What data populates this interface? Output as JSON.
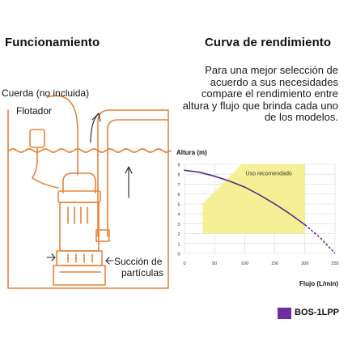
{
  "left": {
    "title": "Funcionamiento",
    "labels": {
      "cord": "Cuerda (no incluida)",
      "float": "Flotador",
      "suction_line1": "Succión de",
      "suction_line2": "partículas"
    }
  },
  "right": {
    "title": "Curva de rendimiento",
    "description": "Para una mejor selección de acuerdo a sus necesidades compare el rendimiento entre altura y flujo que brinda cada uno de los modelos."
  },
  "colors": {
    "orange": "#e8823a",
    "zone": "#f4ee8c",
    "curve": "#5a2a86",
    "legend": "#6b2fa0",
    "grid": "#d9d9d9"
  },
  "chart_data": {
    "type": "line",
    "title": "",
    "ylabel": "Altura (m)",
    "xlabel": "Flujo (L/min)",
    "ylim": [
      0,
      9
    ],
    "xlim": [
      0,
      250
    ],
    "y_ticks": [
      "0",
      "1",
      "2",
      "3",
      "4",
      "5",
      "6",
      "7",
      "8",
      "9"
    ],
    "x_ticks": [
      "0",
      "50",
      "100",
      "150",
      "200",
      "250"
    ],
    "recommended_zone_label": "Uso recomendado",
    "recommended_zone": [
      [
        30,
        2
      ],
      [
        30,
        5
      ],
      [
        95,
        9
      ],
      [
        200,
        9
      ],
      [
        200,
        2
      ]
    ],
    "series": [
      {
        "name": "BOS-1LPP",
        "x": [
          0,
          25,
          50,
          75,
          100,
          125,
          150,
          175,
          200,
          225,
          250
        ],
        "y": [
          8.4,
          8.2,
          7.8,
          7.3,
          6.7,
          5.9,
          5.0,
          4.0,
          2.9,
          1.6,
          0.0
        ]
      }
    ]
  }
}
